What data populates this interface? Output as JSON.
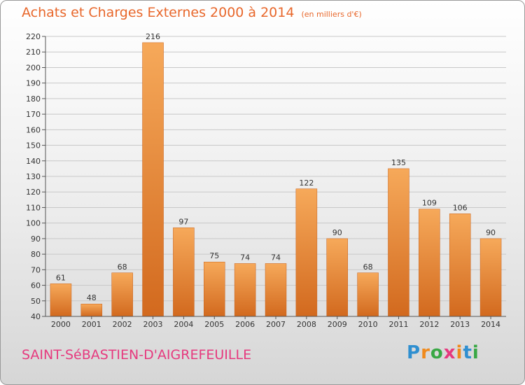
{
  "header": {
    "title": "Achats et Charges Externes 2000 à 2014",
    "subtitle": "(en milliers d'€)"
  },
  "footer": {
    "commune": "SAINT-SéBASTIEN-D'AIGREFEUILLE"
  },
  "logo": {
    "letters": [
      "P",
      "r",
      "o",
      "x",
      "i",
      "t",
      "i"
    ],
    "colors": [
      "#2f8fd0",
      "#f08a1c",
      "#39a845",
      "#e6397e",
      "#f08a1c",
      "#2f8fd0",
      "#39a845"
    ]
  },
  "chart_data": {
    "type": "bar",
    "categories": [
      "2000",
      "2001",
      "2002",
      "2003",
      "2004",
      "2005",
      "2006",
      "2007",
      "2008",
      "2009",
      "2010",
      "2011",
      "2012",
      "2013",
      "2014"
    ],
    "values": [
      61,
      48,
      68,
      216,
      97,
      75,
      74,
      74,
      122,
      90,
      68,
      135,
      109,
      106,
      90
    ],
    "ylim": [
      40,
      220
    ],
    "ytick_step": 10,
    "grid": "horizontal",
    "bar_color_top": "#f6a95a",
    "bar_color_bottom": "#d2691e"
  }
}
